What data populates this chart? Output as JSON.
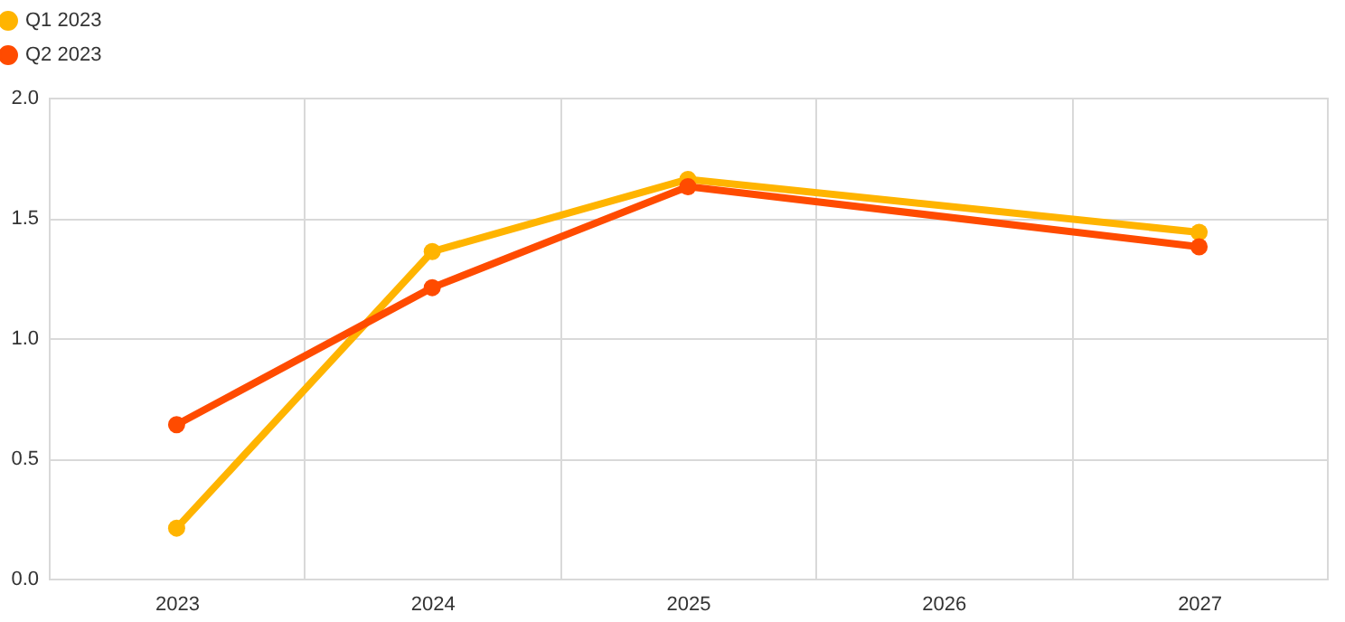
{
  "chart_data": {
    "type": "line",
    "xlim": [
      2022.5,
      2027.5
    ],
    "xticks": [
      {
        "value": 2022.5,
        "label": null
      },
      2023,
      {
        "value": 2023.5,
        "label": null
      },
      2024,
      {
        "value": 2024.5,
        "label": null
      },
      2025,
      {
        "value": 2025.5,
        "label": null
      },
      2026,
      {
        "value": 2026.5,
        "label": null
      },
      2027,
      {
        "value": 2027.5,
        "label": null
      }
    ],
    "series": [
      {
        "name": "Q1 2023",
        "color": "#ffb400",
        "x": [
          2023,
          2024,
          2025,
          2027
        ],
        "values": [
          0.21,
          1.36,
          1.66,
          1.44
        ]
      },
      {
        "name": "Q2 2023",
        "color": "#ff4b00",
        "x": [
          2023,
          2024,
          2025,
          2027
        ],
        "values": [
          0.64,
          1.21,
          1.63,
          1.38
        ]
      }
    ],
    "ylim": [
      0,
      2
    ],
    "yticks": [
      {
        "value": 0,
        "label": "0.0"
      },
      {
        "value": 0.5,
        "label": "0.5"
      },
      {
        "value": 1,
        "label": "1.0"
      },
      {
        "value": 1.5,
        "label": "1.5"
      },
      {
        "value": 2,
        "label": "2.0"
      }
    ],
    "grid": true,
    "legend": "top left",
    "marker": "circle",
    "line_style": "solid"
  }
}
